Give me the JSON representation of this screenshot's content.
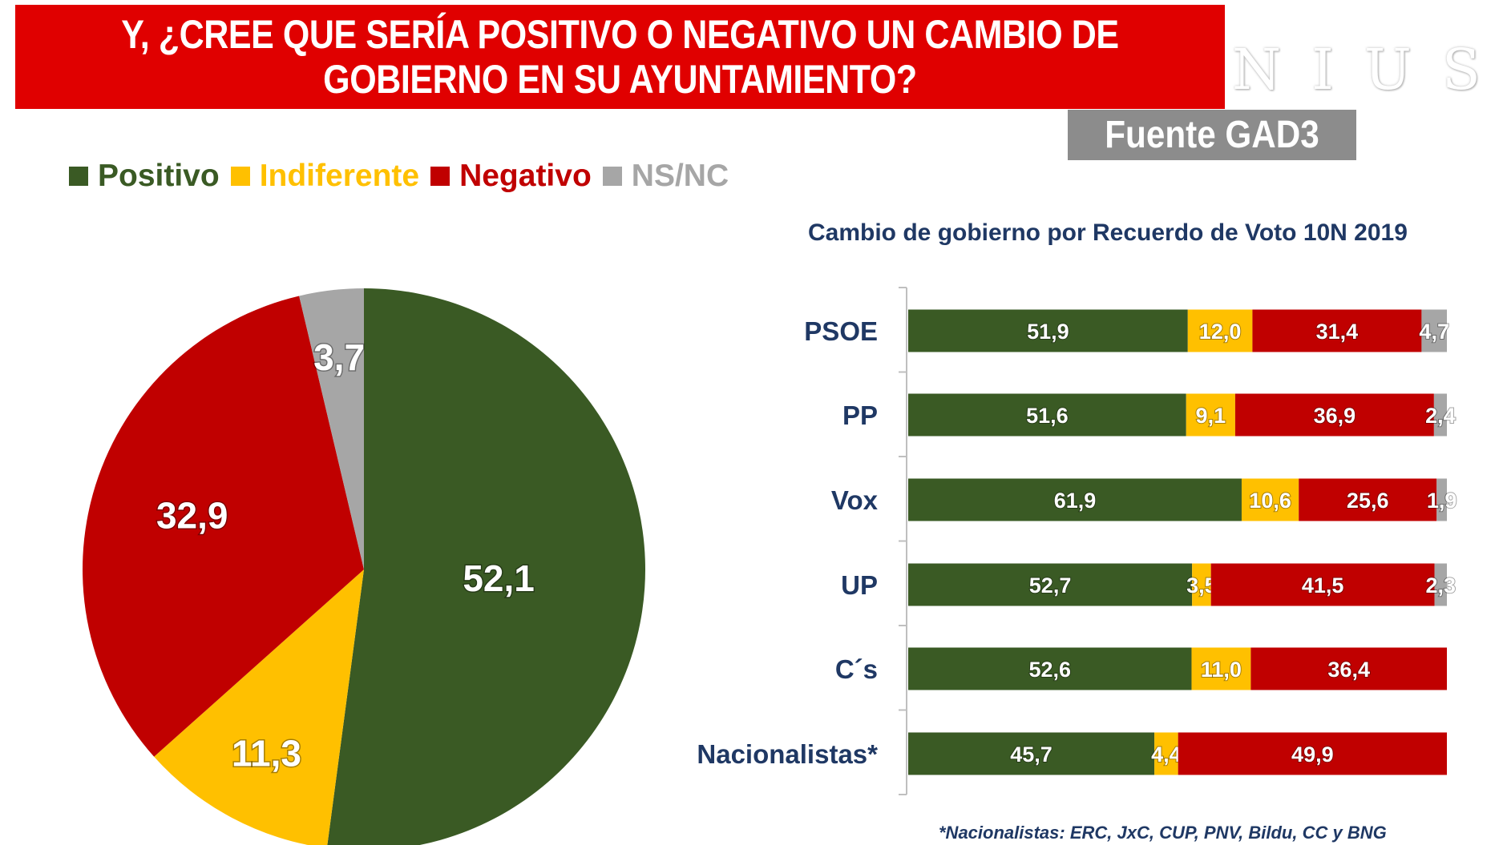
{
  "header": {
    "title": "Y, ¿CREE QUE SERÍA POSITIVO O NEGATIVO UN CAMBIO DE\nGOBIERNO EN SU AYUNTAMIENTO?",
    "watermark": "NIUS",
    "source": "Fuente GAD3"
  },
  "legend": [
    {
      "label": "Positivo",
      "color": "#3a5a24"
    },
    {
      "label": "Indiferente",
      "color": "#ffc000"
    },
    {
      "label": "Negativo",
      "color": "#c00000"
    },
    {
      "label": "NS/NC",
      "color": "#a6a6a6"
    }
  ],
  "chart_data": [
    {
      "type": "pie",
      "categories": [
        "Positivo",
        "Indiferente",
        "Negativo",
        "NS/NC"
      ],
      "values": [
        52.1,
        11.3,
        32.9,
        3.7
      ],
      "labels": [
        "52,1",
        "11,3",
        "32,9",
        "3,7"
      ],
      "colors": [
        "#3a5a24",
        "#ffc000",
        "#c00000",
        "#a6a6a6"
      ]
    },
    {
      "type": "bar",
      "orientation": "horizontal",
      "stacked": true,
      "title": "Cambio de gobierno por Recuerdo de Voto 10N 2019",
      "categories": [
        "PSOE",
        "PP",
        "Vox",
        "UP",
        "C´s",
        "Nacionalistas*"
      ],
      "series": [
        {
          "name": "Positivo",
          "color": "#3a5a24",
          "values": [
            51.9,
            51.6,
            61.9,
            52.7,
            52.6,
            45.7
          ],
          "labels": [
            "51,9",
            "51,6",
            "61,9",
            "52,7",
            "52,6",
            "45,7"
          ]
        },
        {
          "name": "Indiferente",
          "color": "#ffc000",
          "values": [
            12.0,
            9.1,
            10.6,
            3.5,
            11.0,
            4.4
          ],
          "labels": [
            "12,0",
            "9,1",
            "10,6",
            "3,5",
            "11,0",
            "4,4"
          ]
        },
        {
          "name": "Negativo",
          "color": "#c00000",
          "values": [
            31.4,
            36.9,
            25.6,
            41.5,
            36.4,
            49.9
          ],
          "labels": [
            "31,4",
            "36,9",
            "25,6",
            "41,5",
            "36,4",
            "49,9"
          ]
        },
        {
          "name": "NS/NC",
          "color": "#a6a6a6",
          "values": [
            4.7,
            2.4,
            1.9,
            2.3,
            null,
            null
          ],
          "labels": [
            "4,7",
            "2,4",
            "1,9",
            "2,3",
            null,
            null
          ]
        }
      ],
      "footnote": "*Nacionalistas: ERC, JxC, CUP, PNV, Bildu, CC y BNG"
    }
  ]
}
